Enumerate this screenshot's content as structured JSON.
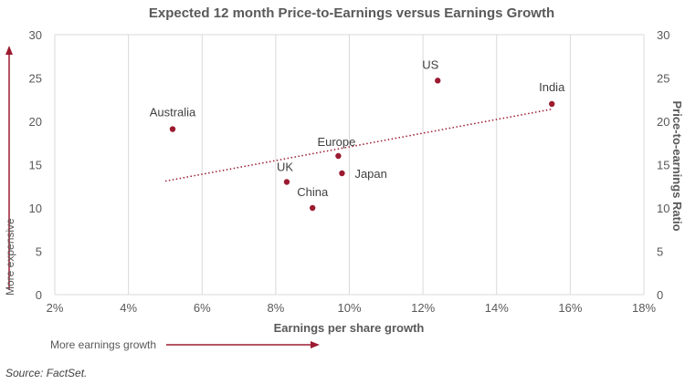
{
  "chart_data": {
    "type": "scatter",
    "title": "Expected 12 month Price-to-Earnings versus Earnings Growth",
    "xlabel": "Earnings per share growth",
    "ylabel": "Price-to-earnings Ratio",
    "xlim": [
      2,
      18
    ],
    "ylim": [
      0,
      30
    ],
    "x_ticks": [
      2,
      4,
      6,
      8,
      10,
      12,
      14,
      16,
      18
    ],
    "x_tick_labels": [
      "2%",
      "4%",
      "6%",
      "8%",
      "10%",
      "12%",
      "14%",
      "16%",
      "18%"
    ],
    "y_ticks": [
      0,
      5,
      10,
      15,
      20,
      25,
      30
    ],
    "y_tick_labels": [
      "0",
      "5",
      "10",
      "15",
      "20",
      "25",
      "30"
    ],
    "grid": "vertical",
    "points": [
      {
        "label": "Australia",
        "x": 5.2,
        "y": 19.1
      },
      {
        "label": "US",
        "x": 12.4,
        "y": 24.7
      },
      {
        "label": "India",
        "x": 15.5,
        "y": 22.0
      },
      {
        "label": "Europe",
        "x": 9.7,
        "y": 16.0
      },
      {
        "label": "Japan",
        "x": 9.8,
        "y": 14.0
      },
      {
        "label": "UK",
        "x": 8.3,
        "y": 13.0
      },
      {
        "label": "China",
        "x": 9.0,
        "y": 10.0
      }
    ],
    "trendline": {
      "x": [
        5.0,
        15.5
      ],
      "y": [
        13.1,
        21.4
      ],
      "style": "dotted"
    },
    "annotations": {
      "vertical_arrow": "More expensive",
      "horizontal_arrow": "More earnings growth"
    },
    "source": "Source: FactSet.",
    "colors": {
      "point": "#9b1b30",
      "text": "#595959",
      "grid": "#d9d9d9"
    }
  }
}
